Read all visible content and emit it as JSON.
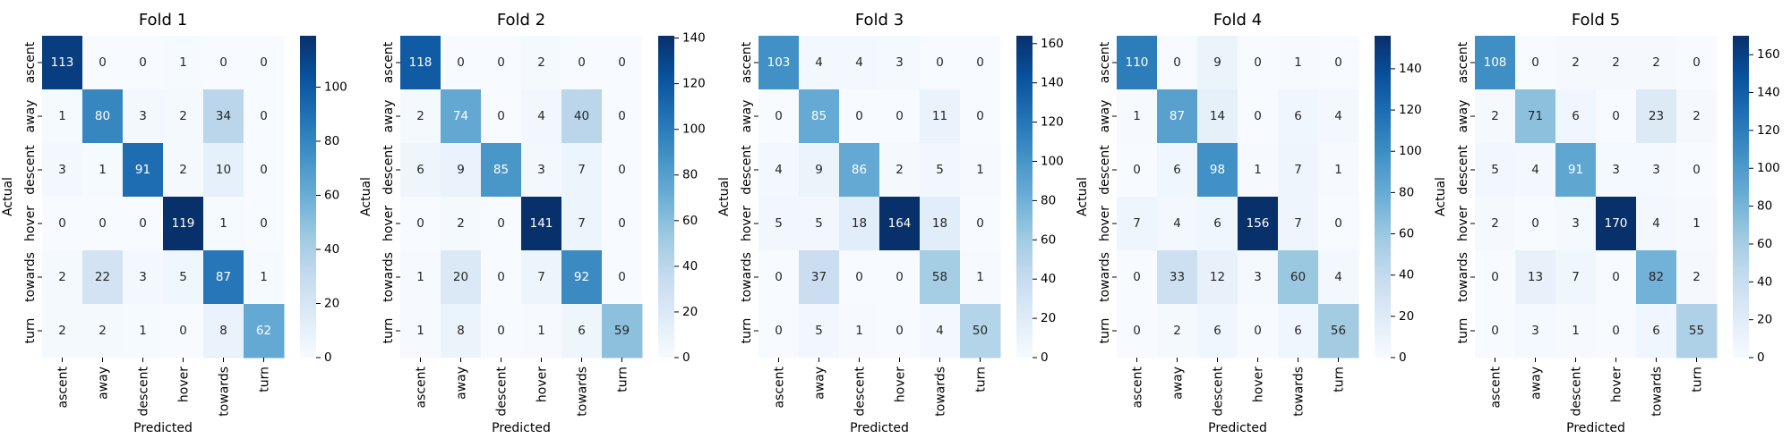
{
  "chart_data": {
    "type": "heatmap",
    "labels": [
      "ascent",
      "away",
      "descent",
      "hover",
      "towards",
      "turn"
    ],
    "xlabel": "Predicted",
    "ylabel": "Actual",
    "colormap": "Blues",
    "annotated": true,
    "colorbar": "right",
    "panels": [
      {
        "title": "Fold 1",
        "matrix": [
          [
            113,
            0,
            0,
            1,
            0,
            0
          ],
          [
            1,
            80,
            3,
            2,
            34,
            0
          ],
          [
            3,
            1,
            91,
            2,
            10,
            0
          ],
          [
            0,
            0,
            0,
            119,
            1,
            0
          ],
          [
            2,
            22,
            3,
            5,
            87,
            1
          ],
          [
            2,
            2,
            1,
            0,
            8,
            62
          ]
        ],
        "colorbar_ticks": [
          0,
          20,
          40,
          60,
          80,
          100
        ]
      },
      {
        "title": "Fold 2",
        "matrix": [
          [
            118,
            0,
            0,
            2,
            0,
            0
          ],
          [
            2,
            74,
            0,
            4,
            40,
            0
          ],
          [
            6,
            9,
            85,
            3,
            7,
            0
          ],
          [
            0,
            2,
            0,
            141,
            7,
            0
          ],
          [
            1,
            20,
            0,
            7,
            92,
            0
          ],
          [
            1,
            8,
            0,
            1,
            6,
            59
          ]
        ],
        "colorbar_ticks": [
          0,
          20,
          40,
          60,
          80,
          100,
          120,
          140
        ]
      },
      {
        "title": "Fold 3",
        "matrix": [
          [
            103,
            4,
            4,
            3,
            0,
            0
          ],
          [
            0,
            85,
            0,
            0,
            11,
            0
          ],
          [
            4,
            9,
            86,
            2,
            5,
            1
          ],
          [
            5,
            5,
            18,
            164,
            18,
            0
          ],
          [
            0,
            37,
            0,
            0,
            58,
            1
          ],
          [
            0,
            5,
            1,
            0,
            4,
            50
          ]
        ],
        "colorbar_ticks": [
          0,
          20,
          40,
          60,
          80,
          100,
          120,
          140,
          160
        ]
      },
      {
        "title": "Fold 4",
        "matrix": [
          [
            110,
            0,
            9,
            0,
            1,
            0
          ],
          [
            1,
            87,
            14,
            0,
            6,
            4
          ],
          [
            0,
            6,
            98,
            1,
            7,
            1
          ],
          [
            7,
            4,
            6,
            156,
            7,
            0
          ],
          [
            0,
            33,
            12,
            3,
            60,
            4
          ],
          [
            0,
            2,
            6,
            0,
            6,
            56
          ]
        ],
        "colorbar_ticks": [
          0,
          20,
          40,
          60,
          80,
          100,
          120,
          140
        ]
      },
      {
        "title": "Fold 5",
        "matrix": [
          [
            108,
            0,
            2,
            2,
            2,
            0
          ],
          [
            2,
            71,
            6,
            0,
            23,
            2
          ],
          [
            5,
            4,
            91,
            3,
            3,
            0
          ],
          [
            2,
            0,
            3,
            170,
            4,
            1
          ],
          [
            0,
            13,
            7,
            0,
            82,
            2
          ],
          [
            0,
            3,
            1,
            0,
            6,
            55
          ]
        ],
        "colorbar_ticks": [
          0,
          20,
          40,
          60,
          80,
          100,
          120,
          140,
          160
        ]
      }
    ]
  }
}
